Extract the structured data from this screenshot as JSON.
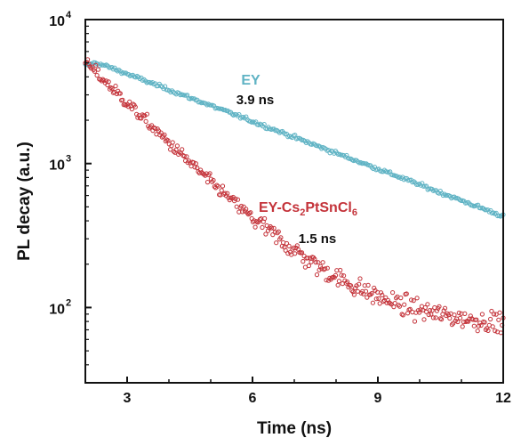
{
  "chart_data": {
    "type": "scatter",
    "title": "",
    "xlabel": "Time (ns)",
    "ylabel": "PL decay (a.u.)",
    "xlim": [
      2,
      12
    ],
    "ylim": [
      30,
      10000
    ],
    "y_scale": "log",
    "grid": false,
    "legend": "none",
    "x_ticks": [
      3,
      6,
      9,
      12
    ],
    "x_tick_labels": [
      "3",
      "6",
      "9",
      "12"
    ],
    "y_ticks": [
      100,
      1000,
      10000
    ],
    "y_tick_bases": [
      "10",
      "10",
      "10"
    ],
    "y_tick_exponents": [
      "2",
      "3",
      "4"
    ],
    "series": [
      {
        "label_parts": [
          "EY"
        ],
        "color": "#5fb3c4",
        "lifetime_label": "3.9 ns",
        "model": {
          "t0": 2.0,
          "rise_end": 2.25,
          "y0": 5000,
          "plateau_end": 2.55,
          "tau": 3.9,
          "y_end": 430,
          "noise": 0.02
        },
        "x": [
          2.0,
          3.0,
          4.0,
          5.0,
          6.0,
          7.0,
          8.0,
          9.0,
          10.0,
          11.0,
          12.0
        ],
        "y": [
          5000,
          4200,
          3350,
          2650,
          2050,
          1600,
          1250,
          970,
          760,
          590,
          430
        ]
      },
      {
        "label_parts": [
          "EY-Cs",
          "2",
          "PtSnCl",
          "6"
        ],
        "color": "#c4333a",
        "lifetime_label": "1.5 ns",
        "model": {
          "t0": 2.0,
          "y0": 5000,
          "tau": 1.5,
          "floor": 72,
          "noise": 0.07
        },
        "x": [
          2.0,
          3.0,
          4.0,
          5.0,
          6.0,
          7.0,
          8.0,
          9.0,
          10.0,
          11.0,
          12.0
        ],
        "y": [
          5000,
          2600,
          1250,
          640,
          380,
          240,
          170,
          130,
          110,
          95,
          85
        ]
      }
    ]
  }
}
